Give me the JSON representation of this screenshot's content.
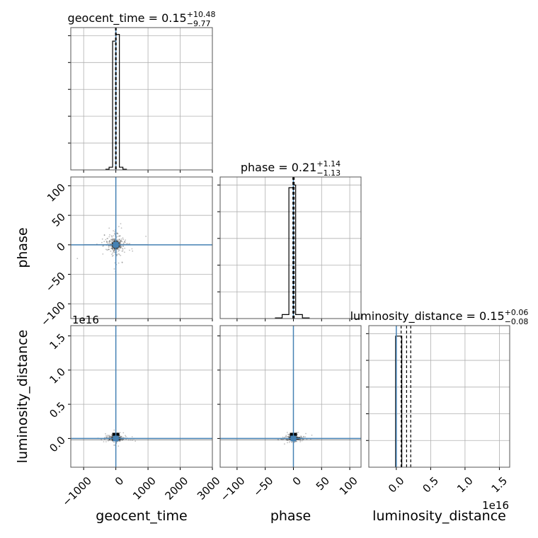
{
  "chart_data": {
    "type": "corner",
    "background": "#ffffff",
    "colors": {
      "hist": "#000000",
      "truth": "#4682b4",
      "grid": "#b0b0b0",
      "frame": "#555555",
      "scatter": "#000000",
      "contour": "#2f2f2f"
    },
    "parameters": [
      {
        "name": "geocent_time",
        "xlim": [
          -1400,
          3000
        ],
        "ticks": [
          -1000,
          0,
          1000,
          2000,
          3000
        ],
        "tick_labels": [
          "−1000",
          "0",
          "1000",
          "2000",
          "3000"
        ],
        "offset_label": "",
        "title": {
          "prefix": "geocent_time = 0.15",
          "upper": "+10.48",
          "lower": "−9.77"
        },
        "median": 0.15,
        "q_low": -9.62,
        "q_high": 10.63,
        "truth": 0,
        "hist": {
          "edges": [
            -310,
            -210,
            -100,
            0,
            110,
            220,
            330
          ],
          "values": [
            0.005,
            0.02,
            0.95,
            1.0,
            0.02,
            0.005
          ],
          "ymax": 1.05
        }
      },
      {
        "name": "phase",
        "xlim": [
          -130,
          120
        ],
        "ticks": [
          -100,
          -50,
          0,
          50,
          100
        ],
        "tick_labels": [
          "−100",
          "−50",
          "0",
          "50",
          "100"
        ],
        "offset_label": "",
        "title": {
          "prefix": "phase = 0.21",
          "upper": "+1.14",
          "lower": "−1.13"
        },
        "median": 0.21,
        "q_low": -0.92,
        "q_high": 1.35,
        "truth": 0,
        "hist": {
          "edges": [
            -32,
            -20,
            -8,
            0,
            4,
            16,
            28
          ],
          "values": [
            0.005,
            0.03,
            0.98,
            1.0,
            0.03,
            0.005
          ],
          "ymax": 1.06
        }
      },
      {
        "name": "luminosity_distance",
        "xlim": [
          -0.4,
          1.65
        ],
        "ticks": [
          0.0,
          0.5,
          1.0,
          1.5
        ],
        "tick_labels": [
          "0.0",
          "0.5",
          "1.0",
          "1.5"
        ],
        "offset_label": "1e16",
        "title": {
          "prefix": "luminosity_distance = 0.15",
          "upper": "+0.06",
          "lower": "−0.08"
        },
        "median": 0.15,
        "q_low": 0.07,
        "q_high": 0.21,
        "truth": 0,
        "hist": {
          "edges": [
            -0.01,
            0.08
          ],
          "values": [
            1.0
          ],
          "ymax": 1.08
        }
      }
    ],
    "row_parameters": [
      null,
      "phase",
      "luminosity_distance"
    ],
    "y_axes": {
      "phase": {
        "ylim": [
          -125,
          115
        ],
        "ticks": [
          -100,
          -50,
          0,
          50,
          100
        ],
        "tick_labels": [
          "−100",
          "−50",
          "0",
          "50",
          "100"
        ],
        "offset_label": ""
      },
      "luminosity_distance": {
        "ylim": [
          -0.42,
          1.65
        ],
        "ticks": [
          0.0,
          0.5,
          1.0,
          1.5
        ],
        "tick_labels": [
          "0.0",
          "0.5",
          "1.0",
          "1.5"
        ],
        "offset_label": "1e16"
      }
    },
    "xlabel_row": [
      "geocent_time",
      "phase",
      "luminosity_distance"
    ],
    "ylabel_col": [
      "phase",
      "luminosity_distance"
    ],
    "grid": true,
    "legend": "none"
  }
}
